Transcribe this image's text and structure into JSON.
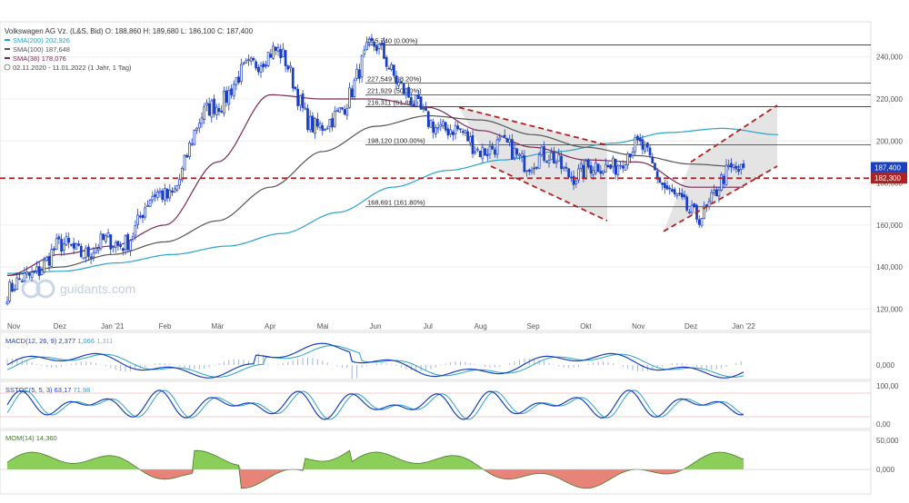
{
  "header": {
    "title": "Volkswagen AG Vz. (L&S, Bid)",
    "ohlc": "O: 188,860  H: 189,680  L: 186,100  C: 187,400",
    "range": "02.11.2020 - 11.01.2022  (1 Jahr, 1 Tag)"
  },
  "legend": [
    {
      "label": "SMA(200)",
      "value": "202,926",
      "color": "#29a3c9"
    },
    {
      "label": "SMA(100)",
      "value": "187,648",
      "color": "#555555"
    },
    {
      "label": "SMA(38)",
      "value": "178,076",
      "color": "#7a2a55"
    }
  ],
  "watermark": "guidants.com",
  "months": [
    "Nov",
    "Dez",
    "Jan '21",
    "Feb",
    "Mär",
    "Apr",
    "Mai",
    "Jun",
    "Jul",
    "Aug",
    "Sep",
    "Okt",
    "Nov",
    "Dez",
    "Jan '22"
  ],
  "main_ticks": [
    "240,000",
    "220,000",
    "200,000",
    "180,000",
    "160,000",
    "140,000",
    "120,000"
  ],
  "price_tags": {
    "last": "187,400",
    "level": "182,300"
  },
  "fib_levels": [
    {
      "label": "245,740 (0.00%)",
      "value": 245.74
    },
    {
      "label": "227,549 (38.20%)",
      "value": 227.55
    },
    {
      "label": "221,929 (50.00%)",
      "value": 221.93
    },
    {
      "label": "216,311 (61.80%)",
      "value": 216.31
    },
    {
      "label": "198,120 (100.00%)",
      "value": 198.12
    },
    {
      "label": "168,691 (161.80%)",
      "value": 168.69
    }
  ],
  "indicators": {
    "macd": {
      "label": "MACD(12, 26, 9)",
      "v1": "2,377",
      "v2": "1,066",
      "v3": "1,311",
      "ticks": [
        "0,000"
      ]
    },
    "sstoc": {
      "label": "SSTOC(5, 5, 3)",
      "v1": "63,17",
      "v2": "71,98",
      "ticks": [
        "100,00",
        "0,00"
      ]
    },
    "mom": {
      "label": "MOM(14)",
      "v1": "14,360",
      "ticks": [
        "50,000",
        "0,000"
      ]
    }
  },
  "colors": {
    "bull": "#1a3fbf",
    "bear": "#1a3fbf",
    "sma200": "#29a3c9",
    "sma100": "#555555",
    "sma38": "#7a2a55",
    "trend": "#b02222",
    "mom_pos": "#8bcf5a",
    "mom_neg": "#e8837a"
  },
  "chart_data": {
    "type": "line",
    "title": "Volkswagen AG Vz. (L&S, Bid)",
    "xlabel": "",
    "ylabel": "",
    "ylim": [
      115,
      255
    ],
    "x": [
      "Nov",
      "Dez",
      "Jan '21",
      "Feb",
      "Mär",
      "Apr",
      "Mai",
      "Jun",
      "Jul",
      "Aug",
      "Sep",
      "Okt",
      "Nov",
      "Dez",
      "Jan '22"
    ],
    "series": [
      {
        "name": "",
        "values": [
          128,
          148,
          150,
          175,
          220,
          243,
          205,
          243,
          210,
          198,
          192,
          185,
          195,
          165,
          187.4
        ]
      },
      {
        "name": "SMA(200)",
        "values": [
          137,
          138,
          142,
          146,
          150,
          156,
          166,
          178,
          186,
          191,
          195,
          199,
          204,
          206,
          203
        ]
      },
      {
        "name": "SMA(100)",
        "values": [
          136,
          140,
          146,
          152,
          162,
          178,
          195,
          207,
          212,
          210,
          203,
          197,
          193,
          189,
          187.6
        ]
      },
      {
        "name": "SMA(38)",
        "values": [
          136,
          146,
          150,
          160,
          190,
          222,
          220,
          220,
          216,
          205,
          197,
          191,
          190,
          178,
          178
        ]
      }
    ]
  }
}
